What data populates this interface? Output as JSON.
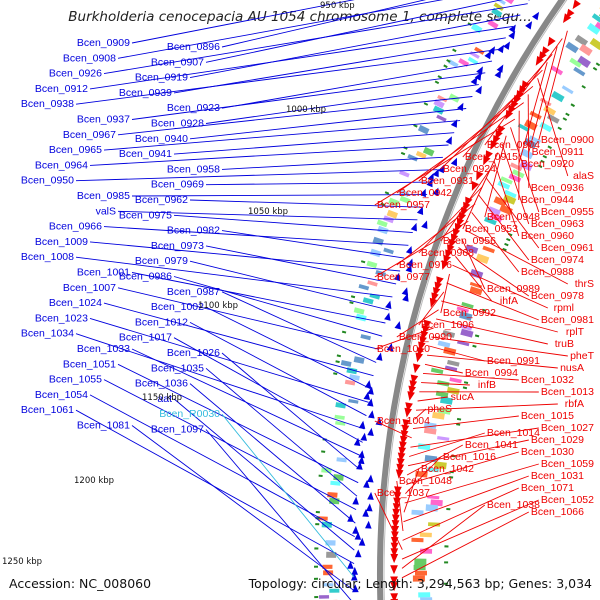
{
  "title": "Burkholderia cenocepacia AU 1054 chromosome 1, complete sequ...",
  "footer": {
    "accession": "Accession: NC_008060",
    "topology": "Topology: circular; Length: 3,294,563 bp; Genes: 3,034"
  },
  "colors": {
    "minus_strand": "#0000dd",
    "plus_strand": "#ee0000",
    "rna_label": "#33bbdd",
    "backbone": "#888888"
  },
  "scale_labels": [
    "950 kbp",
    "1000 kbp",
    "1050 kbp",
    "1100 kbp",
    "1150 kbp",
    "1200 kbp",
    "1250 kbp"
  ],
  "left_labels": [
    "Bcen_0909",
    "Bcen_0896",
    "Bcen_0908",
    "Bcen_0907",
    "Bcen_0926",
    "Bcen_0919",
    "Bcen_0912",
    "Bcen_0939",
    "Bcen_0938",
    "Bcen_0923",
    "Bcen_0937",
    "Bcen_0928",
    "Bcen_0967",
    "Bcen_0940",
    "Bcen_0965",
    "Bcen_0941",
    "Bcen_0964",
    "Bcen_0958",
    "Bcen_0950",
    "Bcen_0969",
    "Bcen_0985",
    "Bcen_0962",
    "valS",
    "Bcen_0975",
    "Bcen_0966",
    "Bcen_0982",
    "Bcen_1009",
    "Bcen_0973",
    "Bcen_1008",
    "Bcen_0979",
    "Bcen_1001",
    "Bcen_0986",
    "Bcen_1007",
    "Bcen_0987",
    "Bcen_1024",
    "Bcen_1002",
    "Bcen_1023",
    "Bcen_1012",
    "Bcen_1034",
    "Bcen_1017",
    "Bcen_1033",
    "Bcen_1026",
    "Bcen_1051",
    "Bcen_1035",
    "Bcen_1055",
    "Bcen_1036",
    "Bcen_1054",
    "aat",
    "Bcen_1061",
    "Bcen_R0030",
    "Bcen_1081",
    "Bcen_1097"
  ],
  "right_labels": [
    "Bcen_0900",
    "Bcen_0904",
    "Bcen_0911",
    "Bcen_0915",
    "Bcen_0920",
    "Bcen_0924",
    "alaS",
    "Bcen_0931",
    "Bcen_0936",
    "Bcen_0942",
    "Bcen_0944",
    "Bcen_0957",
    "Bcen_0955",
    "Bcen_0948",
    "Bcen_0963",
    "Bcen_0953",
    "Bcen_0960",
    "Bcen_0956",
    "Bcen_0961",
    "Bcen_0968",
    "Bcen_0974",
    "Bcen_0976",
    "Bcen_0988",
    "Bcen_0977",
    "thrS",
    "Bcen_0989",
    "Bcen_0978",
    "ihfA",
    "rpml",
    "Bcen_0992",
    "Bcen_0981",
    "Bcen_1006",
    "rplT",
    "Bcen_0990",
    "truB",
    "Bcen_1010",
    "pheT",
    "Bcen_0991",
    "nusA",
    "Bcen_0994",
    "Bcen_1032",
    "infB",
    "Bcen_1013",
    "sucA",
    "rbfA",
    "pheS",
    "Bcen_1015",
    "Bcen_1004",
    "Bcen_1027",
    "Bcen_1014",
    "Bcen_1029",
    "Bcen_1041",
    "Bcen_1030",
    "Bcen_1016",
    "Bcen_1059",
    "Bcen_1042",
    "Bcen_1031",
    "Bcen_1048",
    "Bcen_1071",
    "Bcen_1037",
    "Bcen_1052",
    "Bcen_1038",
    "Bcen_1066"
  ]
}
